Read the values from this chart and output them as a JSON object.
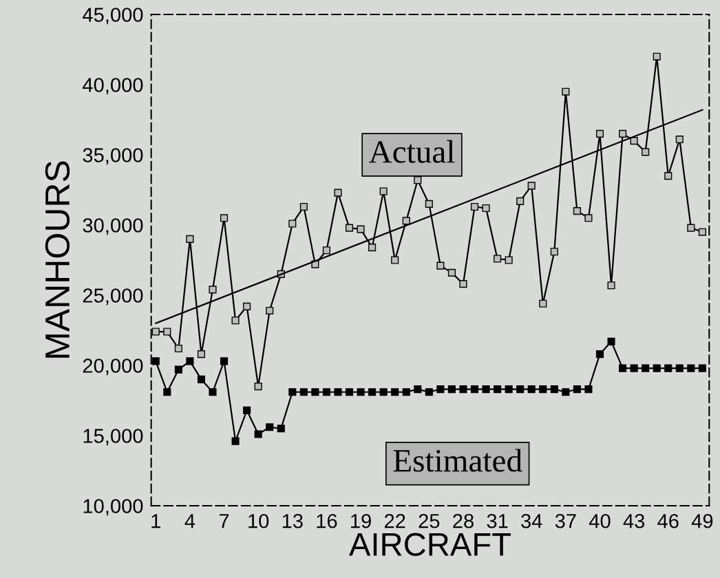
{
  "chart_data": {
    "type": "line",
    "xlabel": "AIRCRAFT",
    "ylabel": "MANHOURS",
    "x": [
      1,
      2,
      3,
      4,
      5,
      6,
      7,
      8,
      9,
      10,
      11,
      12,
      13,
      14,
      15,
      16,
      17,
      18,
      19,
      20,
      21,
      22,
      23,
      24,
      25,
      26,
      27,
      28,
      29,
      30,
      31,
      32,
      33,
      34,
      35,
      36,
      37,
      38,
      39,
      40,
      41,
      42,
      43,
      44,
      45,
      46,
      47,
      48,
      49
    ],
    "series": [
      {
        "name": "Actual",
        "color": "#000000",
        "values": [
          22400,
          22400,
          21200,
          29000,
          20800,
          25400,
          30500,
          23200,
          24200,
          18500,
          23900,
          26500,
          30100,
          31300,
          27200,
          28200,
          32300,
          29800,
          29700,
          28400,
          32400,
          27500,
          30300,
          33200,
          31500,
          27100,
          26600,
          25800,
          31300,
          31200,
          27600,
          27500,
          31700,
          32800,
          24400,
          28100,
          39500,
          31000,
          30500,
          36500,
          25700,
          36500,
          36000,
          35200,
          42000,
          33500,
          36100,
          29800,
          29500
        ]
      },
      {
        "name": "Estimated",
        "color": "#000000",
        "values": [
          20300,
          18100,
          19700,
          20300,
          19000,
          18100,
          20300,
          14600,
          16800,
          15100,
          15600,
          15500,
          18100,
          18100,
          18100,
          18100,
          18100,
          18100,
          18100,
          18100,
          18100,
          18100,
          18100,
          18300,
          18100,
          18300,
          18300,
          18300,
          18300,
          18300,
          18300,
          18300,
          18300,
          18300,
          18300,
          18300,
          18100,
          18300,
          18300,
          20800,
          21700,
          19800,
          19800,
          19800,
          19800,
          19800,
          19800,
          19800,
          19800
        ]
      },
      {
        "type": "line",
        "color": "#000000",
        "marker": "none",
        "x": [
          1,
          49
        ],
        "values": [
          23000,
          38200
        ]
      }
    ],
    "marker": "square",
    "line_style": "solid",
    "grid": false,
    "legend": false,
    "xlim": [
      0.6,
      49.6
    ],
    "xticks": [
      1,
      4,
      7,
      10,
      13,
      16,
      19,
      22,
      25,
      28,
      31,
      34,
      37,
      40,
      43,
      46,
      49
    ],
    "ylim": [
      10000,
      45000
    ],
    "yticks": [
      {
        "value": 10000,
        "label": "10,000"
      },
      {
        "value": 15000,
        "label": "15,000"
      },
      {
        "value": 20000,
        "label": "20,000"
      },
      {
        "value": 25000,
        "label": "25,000"
      },
      {
        "value": 30000,
        "label": "30,000"
      },
      {
        "value": 35000,
        "label": "35,000"
      },
      {
        "value": 40000,
        "label": "40,000"
      },
      {
        "value": 45000,
        "label": "45,000"
      }
    ]
  }
}
